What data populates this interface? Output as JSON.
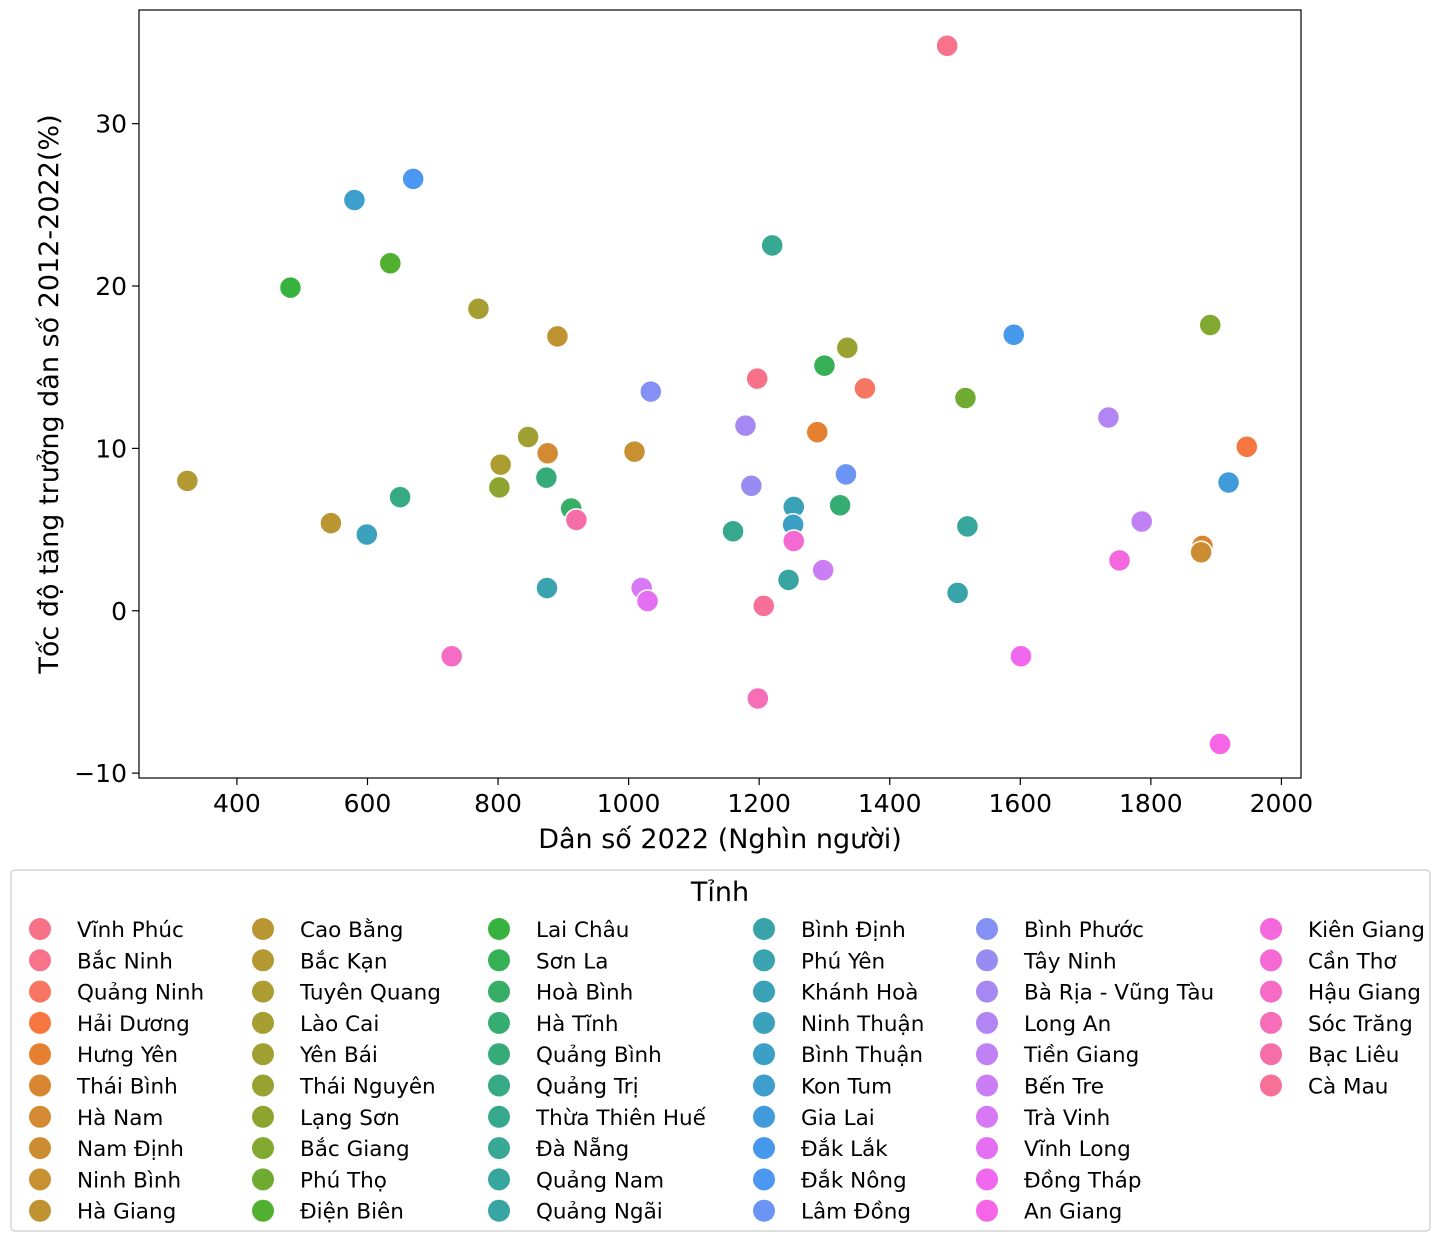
{
  "chart_data": {
    "type": "scatter",
    "title": "",
    "xlabel": "Dân số 2022 (Nghìn người)",
    "ylabel": "Tốc độ tăng trưởng dân số 2012-2022(%)",
    "xlim": [
      250,
      2030
    ],
    "ylim": [
      -10.3,
      37
    ],
    "xticks": [
      400,
      600,
      800,
      1000,
      1200,
      1400,
      1600,
      1800,
      2000
    ],
    "yticks": [
      -10,
      0,
      10,
      20,
      30
    ],
    "xtick_labels": [
      "400",
      "600",
      "800",
      "1000",
      "1200",
      "1400",
      "1600",
      "1800",
      "2000"
    ],
    "ytick_labels": [
      "−10",
      "0",
      "10",
      "20",
      "30"
    ],
    "grid": false,
    "legend_title": "Tỉnh",
    "legend_position": "bottom",
    "series": [
      {
        "name": "Vĩnh Phúc",
        "color": "#f77189",
        "x": 1197,
        "y": 14.3
      },
      {
        "name": "Bắc Ninh",
        "color": "#f7728a",
        "x": 1488,
        "y": 34.8
      },
      {
        "name": "Quảng Ninh",
        "color": "#f67661",
        "x": 1362,
        "y": 13.7
      },
      {
        "name": "Hải Dương",
        "color": "#f67640",
        "x": 1947,
        "y": 10.1
      },
      {
        "name": "Hưng Yên",
        "color": "#e58031",
        "x": 1289,
        "y": 11.0
      },
      {
        "name": "Thái Bình",
        "color": "#d98632",
        "x": 1879,
        "y": 4.0
      },
      {
        "name": "Hà Nam",
        "color": "#d38a32",
        "x": 876,
        "y": 9.7
      },
      {
        "name": "Nam Định",
        "color": "#cc8d32",
        "x": 1877,
        "y": 3.6
      },
      {
        "name": "Ninh Bình",
        "color": "#c79132",
        "x": 1009,
        "y": 9.8
      },
      {
        "name": "Hà Giang",
        "color": "#c09332",
        "x": 891,
        "y": 16.9
      },
      {
        "name": "Cao Bằng",
        "color": "#b99631",
        "x": 544,
        "y": 5.4
      },
      {
        "name": "Bắc Kạn",
        "color": "#b39931",
        "x": 324,
        "y": 8.0
      },
      {
        "name": "Tuyên Quang",
        "color": "#ad9c31",
        "x": 804,
        "y": 9.0
      },
      {
        "name": "Lào Cai",
        "color": "#a69e31",
        "x": 770,
        "y": 18.6
      },
      {
        "name": "Yên Bái",
        "color": "#9fa031",
        "x": 846,
        "y": 10.7
      },
      {
        "name": "Thái Nguyên",
        "color": "#98a231",
        "x": 1335,
        "y": 16.2
      },
      {
        "name": "Lạng Sơn",
        "color": "#8ea431",
        "x": 802,
        "y": 7.6
      },
      {
        "name": "Bắc Giang",
        "color": "#81a831",
        "x": 1891,
        "y": 17.6
      },
      {
        "name": "Phú Thọ",
        "color": "#6fab31",
        "x": 1516,
        "y": 13.1
      },
      {
        "name": "Điện Biên",
        "color": "#52b031",
        "x": 635,
        "y": 21.4
      },
      {
        "name": "Lai Châu",
        "color": "#37b23e",
        "x": 482,
        "y": 19.9
      },
      {
        "name": "Sơn La",
        "color": "#35b055",
        "x": 1300,
        "y": 15.1
      },
      {
        "name": "Hoà Bình",
        "color": "#36ae65",
        "x": 912,
        "y": 6.3
      },
      {
        "name": "Hà Tĩnh",
        "color": "#36ad70",
        "x": 1324,
        "y": 6.5
      },
      {
        "name": "Quảng Bình",
        "color": "#36ab7a",
        "x": 874,
        "y": 8.2
      },
      {
        "name": "Quảng Trị",
        "color": "#36aa84",
        "x": 650,
        "y": 7.0
      },
      {
        "name": "Thừa Thiên Huế",
        "color": "#36a98c",
        "x": 1160,
        "y": 4.9
      },
      {
        "name": "Đà Nẵng",
        "color": "#36a894",
        "x": 1220,
        "y": 22.5
      },
      {
        "name": "Quảng Nam",
        "color": "#37a69c",
        "x": 1519,
        "y": 5.2
      },
      {
        "name": "Quảng Ngãi",
        "color": "#38a5a3",
        "x": 1245,
        "y": 1.9
      },
      {
        "name": "Bình Định",
        "color": "#38a4a9",
        "x": 1504,
        "y": 1.1
      },
      {
        "name": "Phú Yên",
        "color": "#39a3af",
        "x": 875,
        "y": 1.4
      },
      {
        "name": "Khánh Hoà",
        "color": "#3aa2b6",
        "x": 1253,
        "y": 6.4
      },
      {
        "name": "Ninh Thuận",
        "color": "#3ba1bd",
        "x": 599,
        "y": 4.7
      },
      {
        "name": "Bình Thuận",
        "color": "#3c9fc5",
        "x": 1252,
        "y": 5.3
      },
      {
        "name": "Kon Tum",
        "color": "#3e9ece",
        "x": 580,
        "y": 25.3
      },
      {
        "name": "Gia Lai",
        "color": "#419bda",
        "x": 1919,
        "y": 7.9
      },
      {
        "name": "Đắk Lắk",
        "color": "#4698eb",
        "x": 1590,
        "y": 17.0
      },
      {
        "name": "Đắk Nông",
        "color": "#4c97f2",
        "x": 670,
        "y": 26.6
      },
      {
        "name": "Lâm Đồng",
        "color": "#6b94f5",
        "x": 1333,
        "y": 8.4
      },
      {
        "name": "Bình Phước",
        "color": "#8490f4",
        "x": 1034,
        "y": 13.5
      },
      {
        "name": "Tây Ninh",
        "color": "#978cf2",
        "x": 1188,
        "y": 7.7
      },
      {
        "name": "Bà Rịa - Vũng Tàu",
        "color": "#a688f3",
        "x": 1179,
        "y": 11.4
      },
      {
        "name": "Long An",
        "color": "#b384f3",
        "x": 1735,
        "y": 11.9
      },
      {
        "name": "Tiền Giang",
        "color": "#bf81f4",
        "x": 1786,
        "y": 5.5
      },
      {
        "name": "Bến Tre",
        "color": "#cb7ef4",
        "x": 1298,
        "y": 2.5
      },
      {
        "name": "Trà Vinh",
        "color": "#d778f4",
        "x": 1020,
        "y": 1.4
      },
      {
        "name": "Vĩnh Long",
        "color": "#e46ff2",
        "x": 1029,
        "y": 0.6
      },
      {
        "name": "Đồng Tháp",
        "color": "#ef68ee",
        "x": 1601,
        "y": -2.8
      },
      {
        "name": "An Giang",
        "color": "#f565e6",
        "x": 1906,
        "y": -8.2
      },
      {
        "name": "Kiên Giang",
        "color": "#f568dd",
        "x": 1752,
        "y": 3.1
      },
      {
        "name": "Cần Thơ",
        "color": "#f56ad2",
        "x": 1253,
        "y": 4.3
      },
      {
        "name": "Hậu Giang",
        "color": "#f66cc5",
        "x": 729,
        "y": -2.8
      },
      {
        "name": "Sóc Trăng",
        "color": "#f66db8",
        "x": 1198,
        "y": -5.4
      },
      {
        "name": "Bạc Liêu",
        "color": "#f66ea8",
        "x": 920,
        "y": 5.6
      },
      {
        "name": "Cà Mau",
        "color": "#f67097",
        "x": 1207,
        "y": 0.3
      }
    ]
  }
}
